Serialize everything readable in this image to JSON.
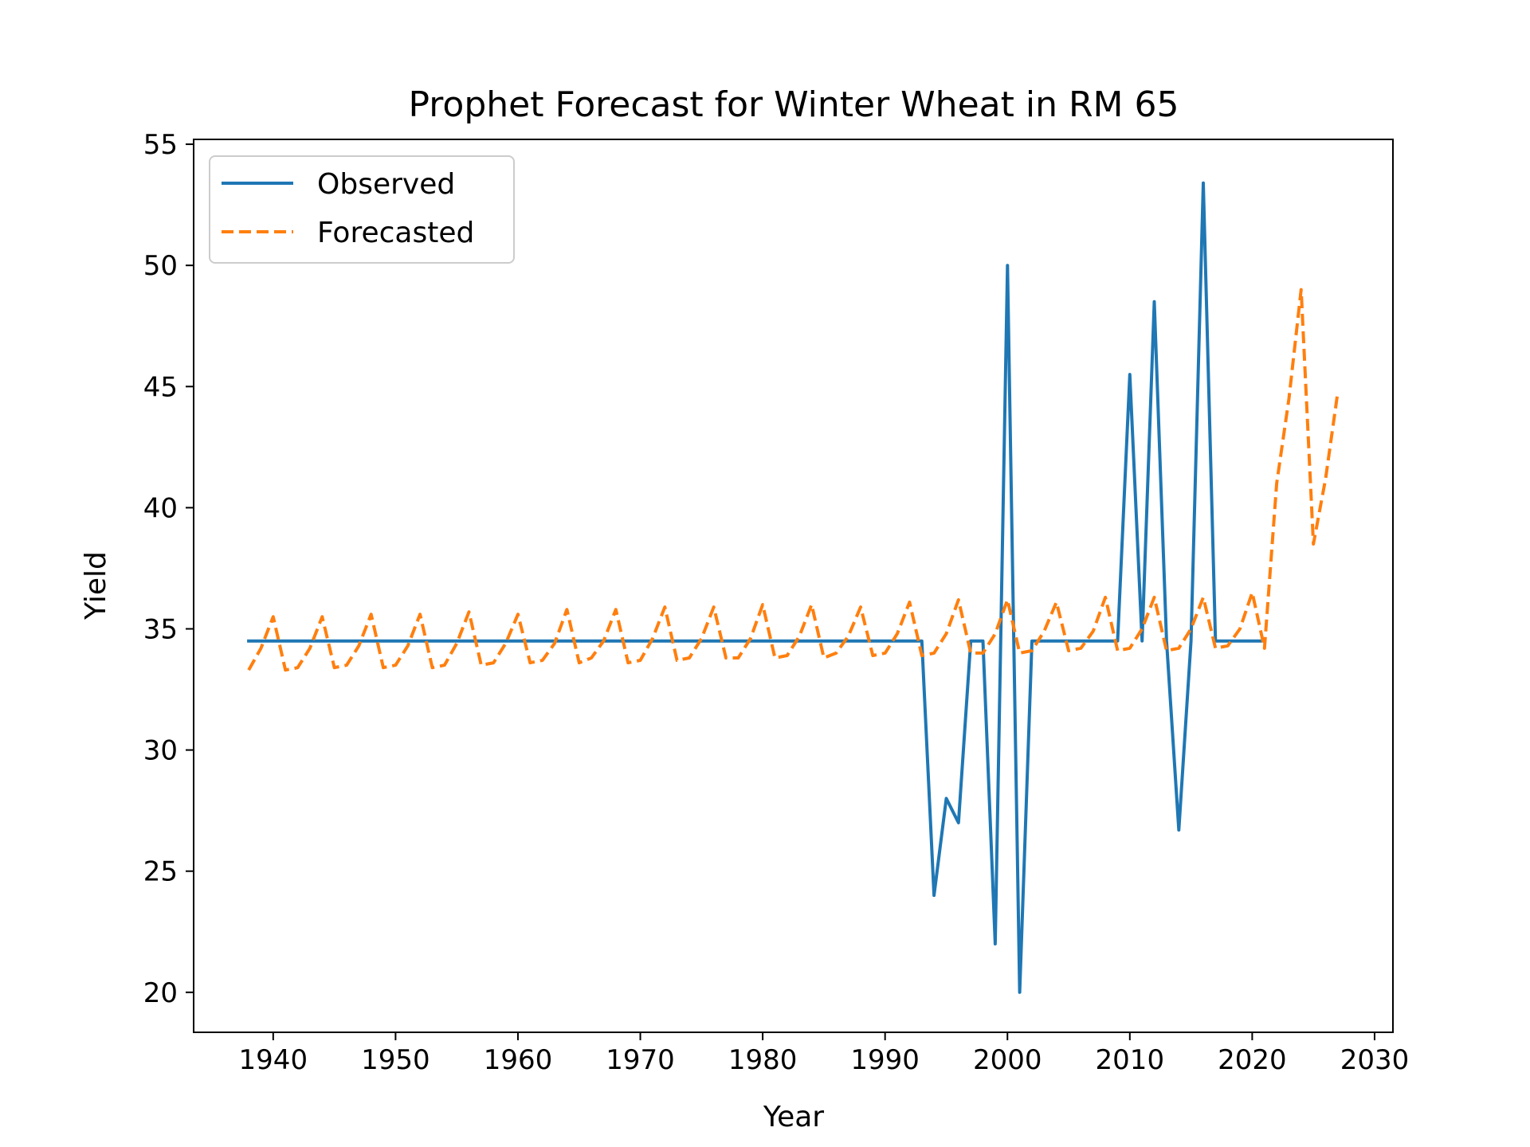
{
  "chart_data": {
    "type": "line",
    "title": "Prophet Forecast for Winter Wheat in RM 65",
    "xlabel": "Year",
    "ylabel": "Yield",
    "xlim": [
      1933.5,
      2031.5
    ],
    "ylim": [
      18.35,
      55.2
    ],
    "xticks": [
      1940,
      1950,
      1960,
      1970,
      1980,
      1990,
      2000,
      2010,
      2020,
      2030
    ],
    "yticks": [
      20,
      25,
      30,
      35,
      40,
      45,
      50,
      55
    ],
    "grid": false,
    "legend_position": "upper-left",
    "series": [
      {
        "name": "Observed",
        "color": "#1f77b4",
        "style": "solid",
        "x": [
          1938,
          1993,
          1994,
          1995,
          1996,
          1997,
          1998,
          1999,
          2000,
          2001,
          2002,
          2009,
          2010,
          2011,
          2012,
          2013,
          2014,
          2015,
          2016,
          2017,
          2021
        ],
        "y": [
          34.5,
          34.5,
          24.0,
          28.0,
          27.0,
          34.5,
          34.5,
          22.0,
          50.0,
          20.0,
          34.5,
          34.5,
          45.5,
          34.5,
          48.5,
          34.5,
          26.7,
          34.5,
          53.4,
          34.5,
          34.5
        ]
      },
      {
        "name": "Forecasted",
        "color": "#ff7f0e",
        "style": "dashed",
        "x": [
          1938,
          1939,
          1940,
          1941,
          1942,
          1943,
          1944,
          1945,
          1946,
          1947,
          1948,
          1949,
          1950,
          1951,
          1952,
          1953,
          1954,
          1955,
          1956,
          1957,
          1958,
          1959,
          1960,
          1961,
          1962,
          1963,
          1964,
          1965,
          1966,
          1967,
          1968,
          1969,
          1970,
          1971,
          1972,
          1973,
          1974,
          1975,
          1976,
          1977,
          1978,
          1979,
          1980,
          1981,
          1982,
          1983,
          1984,
          1985,
          1986,
          1987,
          1988,
          1989,
          1990,
          1991,
          1992,
          1993,
          1994,
          1995,
          1996,
          1997,
          1998,
          1999,
          2000,
          2001,
          2002,
          2003,
          2004,
          2005,
          2006,
          2007,
          2008,
          2009,
          2010,
          2011,
          2012,
          2013,
          2014,
          2015,
          2016,
          2017,
          2018,
          2019,
          2020,
          2021,
          2022,
          2023,
          2024,
          2025,
          2026,
          2027
        ],
        "y": [
          33.3,
          34.2,
          35.5,
          33.3,
          33.4,
          34.2,
          35.5,
          33.4,
          33.5,
          34.3,
          35.6,
          33.4,
          33.5,
          34.3,
          35.6,
          33.4,
          33.5,
          34.4,
          35.7,
          33.5,
          33.6,
          34.4,
          35.6,
          33.6,
          33.7,
          34.4,
          35.8,
          33.6,
          33.8,
          34.5,
          35.8,
          33.6,
          33.7,
          34.6,
          35.9,
          33.7,
          33.8,
          34.6,
          35.9,
          33.8,
          33.8,
          34.6,
          36.0,
          33.8,
          33.9,
          34.7,
          36.0,
          33.8,
          34.0,
          34.7,
          35.9,
          33.9,
          34.0,
          34.8,
          36.1,
          33.9,
          34.0,
          34.8,
          36.2,
          34.0,
          34.0,
          34.8,
          36.2,
          34.0,
          34.1,
          34.9,
          36.1,
          34.1,
          34.2,
          34.9,
          36.3,
          34.1,
          34.2,
          35.0,
          36.3,
          34.1,
          34.2,
          35.0,
          36.3,
          34.2,
          34.3,
          35.0,
          36.5,
          34.2,
          41.0,
          44.5,
          49.0,
          38.5,
          41.2,
          44.8
        ]
      }
    ]
  }
}
